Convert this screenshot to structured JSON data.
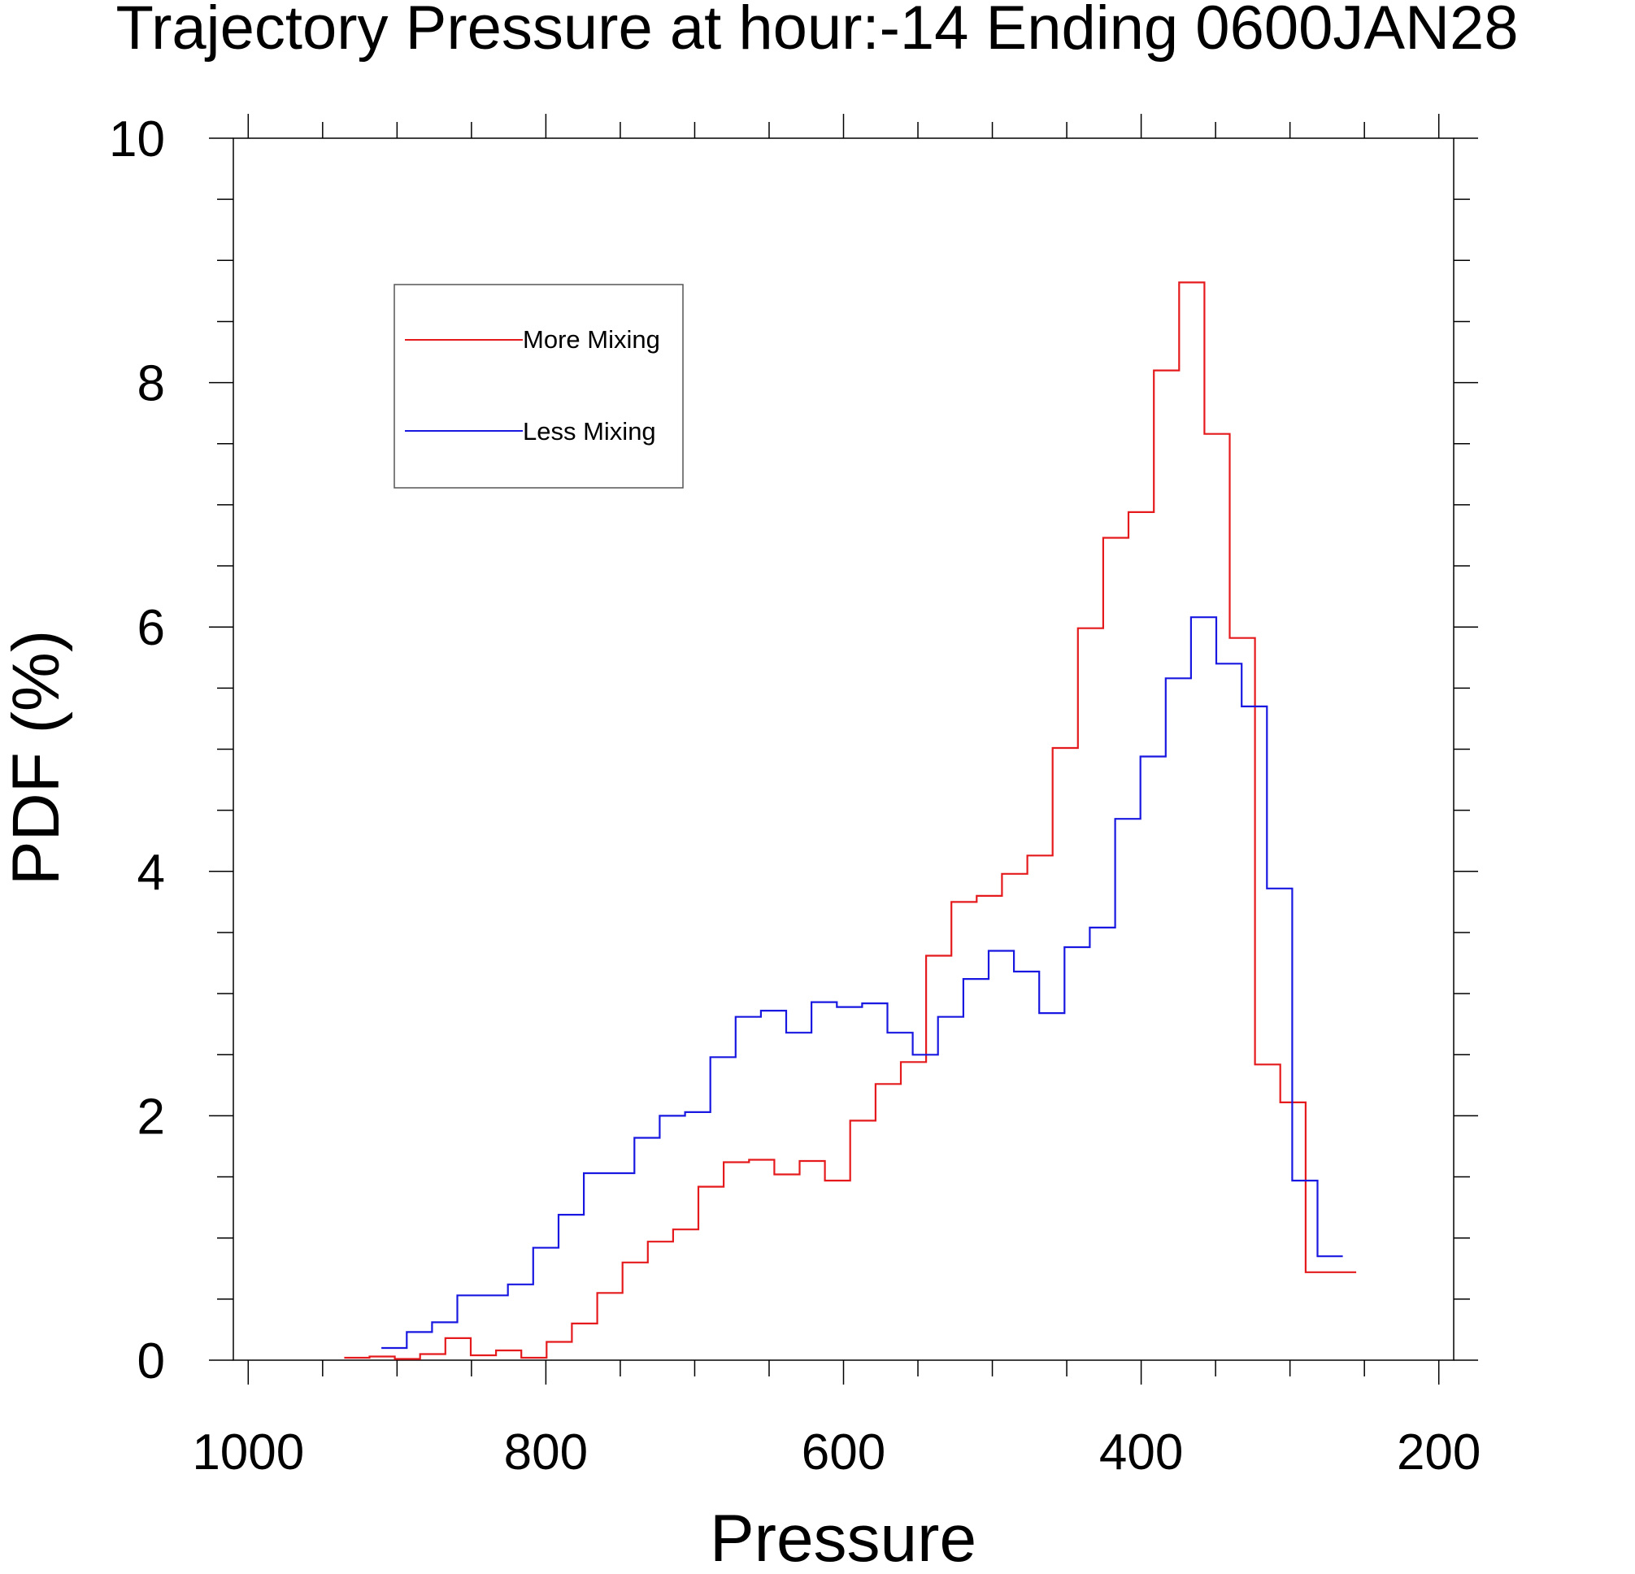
{
  "chart_data": {
    "type": "line",
    "step": true,
    "title": "Trajectory Pressure at hour:-14 Ending 0600JAN28",
    "xlabel": "Pressure",
    "ylabel": "PDF (%)",
    "xlim": [
      1010,
      190
    ],
    "ylim": [
      0,
      10
    ],
    "x_reversed": true,
    "x_ticks": [
      1000,
      800,
      600,
      400,
      200
    ],
    "y_ticks": [
      0,
      2,
      4,
      6,
      8,
      10
    ],
    "grid": false,
    "legend_position": "upper-left",
    "bin_width": 17,
    "series": [
      {
        "name": "More Mixing",
        "color": "#e41a1c",
        "x": [
          927,
          910,
          893,
          876,
          859,
          842,
          825,
          808,
          791,
          774,
          757,
          740,
          723,
          706,
          689,
          672,
          655,
          638,
          621,
          604,
          587,
          570,
          553,
          536,
          519,
          502,
          485,
          468,
          451,
          434,
          417,
          400,
          383,
          366,
          349,
          332,
          315,
          298,
          281,
          264
        ],
        "y": [
          0.02,
          0.03,
          0.01,
          0.05,
          0.18,
          0.04,
          0.08,
          0.02,
          0.15,
          0.3,
          0.55,
          0.8,
          0.97,
          1.07,
          1.42,
          1.62,
          1.64,
          1.52,
          1.63,
          1.47,
          1.96,
          2.26,
          2.44,
          3.31,
          3.75,
          3.8,
          3.98,
          4.13,
          5.01,
          5.99,
          6.73,
          6.94,
          8.1,
          8.82,
          7.58,
          5.91,
          2.42,
          2.11,
          0.72,
          0.72
        ]
      },
      {
        "name": "Less Mixing",
        "color": "#1818e0",
        "x": [
          902,
          885,
          868,
          851,
          834,
          817,
          800,
          783,
          766,
          749,
          732,
          715,
          698,
          681,
          664,
          647,
          630,
          613,
          596,
          579,
          562,
          545,
          528,
          511,
          494,
          477,
          460,
          443,
          426,
          409,
          392,
          375,
          358,
          341,
          324,
          307,
          290,
          273
        ],
        "y": [
          0.1,
          0.23,
          0.31,
          0.53,
          0.53,
          0.62,
          0.92,
          1.19,
          1.53,
          1.53,
          1.82,
          2.0,
          2.03,
          2.48,
          2.81,
          2.86,
          2.68,
          2.93,
          2.89,
          2.92,
          2.68,
          2.5,
          2.81,
          3.12,
          3.35,
          3.18,
          2.84,
          3.38,
          3.54,
          4.43,
          4.94,
          5.58,
          6.08,
          5.7,
          5.35,
          3.86,
          1.47,
          0.85
        ]
      }
    ],
    "colors": {
      "axis": "#000000",
      "more_mixing": "#e41a1c",
      "less_mixing": "#1818e0",
      "legend_border": "#555555"
    }
  },
  "title": "Trajectory Pressure at hour:-14 Ending 0600JAN28",
  "xlabel": "Pressure",
  "ylabel": "PDF (%)",
  "legend": {
    "items": [
      {
        "label": "More Mixing",
        "color": "#e41a1c"
      },
      {
        "label": "Less Mixing",
        "color": "#1818e0"
      }
    ]
  }
}
